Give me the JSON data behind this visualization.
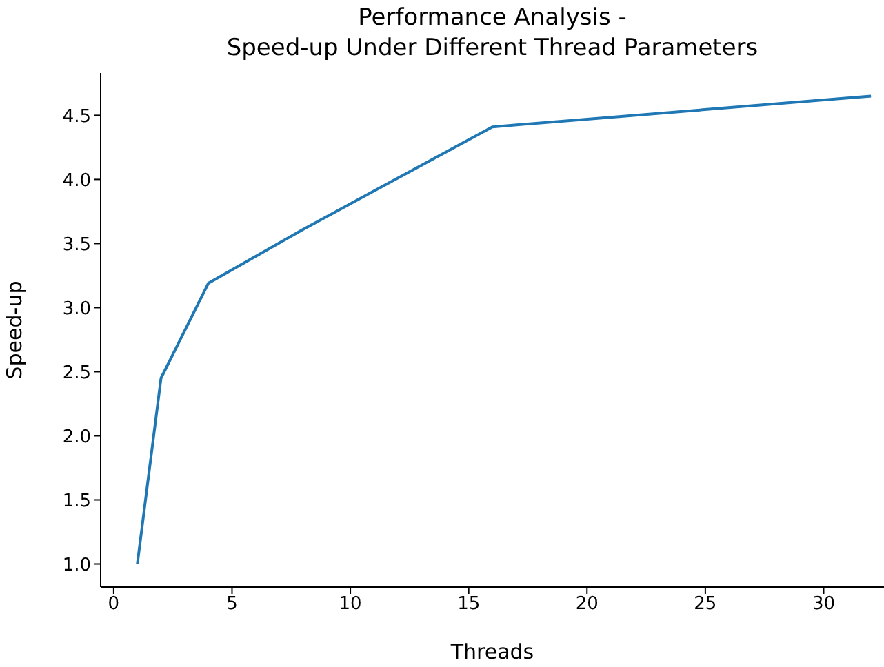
{
  "chart_data": {
    "type": "line",
    "title": "Performance Analysis -\nSpeed-up Under Different Thread Parameters",
    "xlabel": "Threads",
    "ylabel": "Speed-up",
    "x": [
      1,
      2,
      4,
      8,
      16,
      32
    ],
    "series": [
      {
        "color": "#1f77b4",
        "values": [
          1.0,
          2.45,
          3.19,
          3.61,
          4.41,
          4.65
        ]
      }
    ],
    "xlim": [
      -0.55,
      32.55
    ],
    "xticks": [
      0,
      5,
      10,
      15,
      20,
      25,
      30
    ],
    "ylim": [
      0.82,
      4.83
    ],
    "yticks": [
      {
        "value": 1,
        "label": "1.0"
      },
      {
        "value": 1.5,
        "label": "1.5"
      },
      {
        "value": 2,
        "label": "2.0"
      },
      {
        "value": 2.5,
        "label": "2.5"
      },
      {
        "value": 3,
        "label": "3.0"
      },
      {
        "value": 3.5,
        "label": "3.5"
      },
      {
        "value": 4,
        "label": "4.0"
      },
      {
        "value": 4.5,
        "label": "4.5"
      }
    ],
    "grid": false,
    "legend": false,
    "marker": "none",
    "line_style": "solid"
  }
}
